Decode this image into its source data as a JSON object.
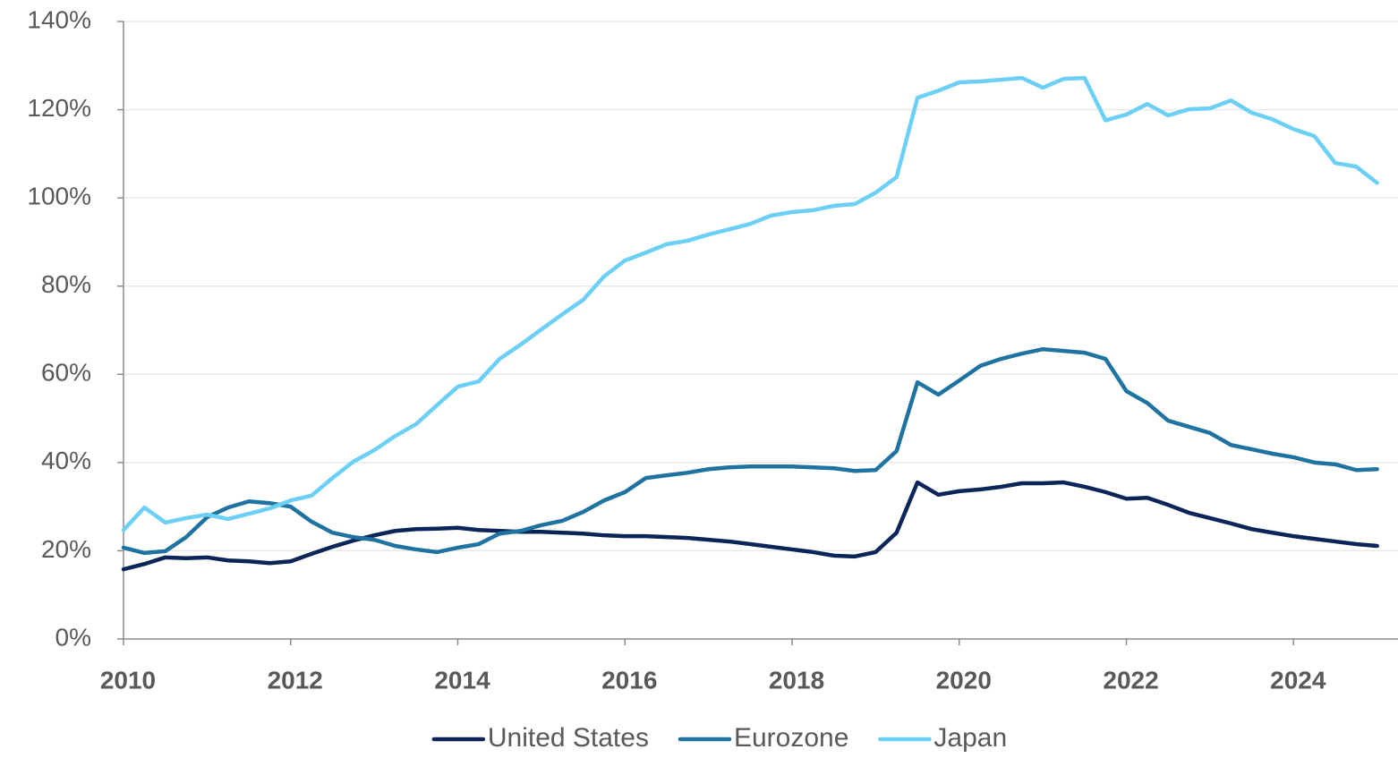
{
  "chart_data": {
    "type": "line",
    "x": [
      2010,
      2010.25,
      2010.5,
      2010.75,
      2011,
      2011.25,
      2011.5,
      2011.75,
      2012,
      2012.25,
      2012.5,
      2012.75,
      2013,
      2013.25,
      2013.5,
      2013.75,
      2014,
      2014.25,
      2014.5,
      2014.75,
      2015,
      2015.25,
      2015.5,
      2015.75,
      2016,
      2016.25,
      2016.5,
      2016.75,
      2017,
      2017.25,
      2017.5,
      2017.75,
      2018,
      2018.25,
      2018.5,
      2018.75,
      2019,
      2019.25,
      2019.5,
      2019.75,
      2020,
      2020.25,
      2020.5,
      2020.75,
      2021,
      2021.25,
      2021.5,
      2021.75,
      2022,
      2022.25,
      2022.5,
      2022.75,
      2023,
      2023.25,
      2023.5,
      2023.75,
      2024,
      2024.25,
      2024.5,
      2024.75,
      2025
    ],
    "series": [
      {
        "name": "United States",
        "color": "#0b2559",
        "values": [
          15.8,
          17,
          18.5,
          18.3,
          18.5,
          17.8,
          17.6,
          17.2,
          17.6,
          19.3,
          20.9,
          22.3,
          23.5,
          24.5,
          24.9,
          25,
          25.2,
          24.7,
          24.5,
          24.3,
          24.3,
          24.1,
          23.9,
          23.5,
          23.3,
          23.3,
          23.1,
          22.9,
          22.5,
          22.1,
          21.5,
          20.9,
          20.3,
          19.7,
          18.9,
          18.7,
          19.7,
          24.1,
          35.5,
          32.7,
          33.5,
          33.9,
          34.5,
          35.3,
          35.3,
          35.5,
          34.5,
          33.3,
          31.8,
          32,
          30.4,
          28.6,
          27.4,
          26.2,
          24.9,
          24.1,
          23.3,
          22.7,
          22.1,
          21.5,
          21.1
        ]
      },
      {
        "name": "Eurozone",
        "color": "#1f73a0",
        "values": [
          20.7,
          19.5,
          19.9,
          23.1,
          27.6,
          29.8,
          31.2,
          30.8,
          30,
          26.6,
          24.1,
          23.1,
          22.5,
          21.1,
          20.3,
          19.7,
          20.7,
          21.5,
          23.9,
          24.5,
          25.8,
          26.8,
          28.8,
          31.4,
          33.3,
          36.5,
          37.1,
          37.7,
          38.5,
          38.9,
          39.1,
          39.1,
          39.1,
          38.9,
          38.7,
          38.1,
          38.3,
          42.6,
          58.2,
          55.4,
          58.6,
          61.9,
          63.5,
          64.7,
          65.7,
          65.3,
          64.9,
          63.5,
          56.2,
          53.5,
          49.5,
          48.1,
          46.7,
          44,
          43,
          42,
          41.2,
          40,
          39.6,
          38.3,
          38.5
        ]
      },
      {
        "name": "Japan",
        "color": "#6ccff6",
        "values": [
          24.7,
          29.8,
          26.4,
          27.4,
          28.2,
          27.2,
          28.4,
          29.6,
          31.4,
          32.5,
          36.5,
          40.2,
          42.8,
          46,
          48.7,
          53,
          57.2,
          58.4,
          63.5,
          66.7,
          70.2,
          73.6,
          76.9,
          82.2,
          85.8,
          87.6,
          89.5,
          90.3,
          91.7,
          92.9,
          94.1,
          96,
          96.8,
          97.2,
          98.2,
          98.6,
          101.2,
          104.7,
          122.7,
          124.3,
          126.2,
          126.4,
          126.8,
          127.2,
          125,
          127,
          127.2,
          117.6,
          118.9,
          121.3,
          118.7,
          120.1,
          120.3,
          122.1,
          119.3,
          117.8,
          115.6,
          114,
          107.9,
          107.1,
          103.4
        ]
      }
    ],
    "xlim": [
      2010,
      2025.25
    ],
    "xticks": [
      2010,
      2012,
      2014,
      2016,
      2018,
      2020,
      2022,
      2024
    ],
    "ylim": [
      0,
      140
    ],
    "yticks": [
      {
        "value": 0,
        "label": "0%"
      },
      {
        "value": 20,
        "label": "20%"
      },
      {
        "value": 40,
        "label": "40%"
      },
      {
        "value": 60,
        "label": "60%"
      },
      {
        "value": 80,
        "label": "80%"
      },
      {
        "value": 100,
        "label": "100%"
      },
      {
        "value": 120,
        "label": "120%"
      },
      {
        "value": 140,
        "label": "140%"
      }
    ],
    "grid": true,
    "legend": "bottom"
  }
}
